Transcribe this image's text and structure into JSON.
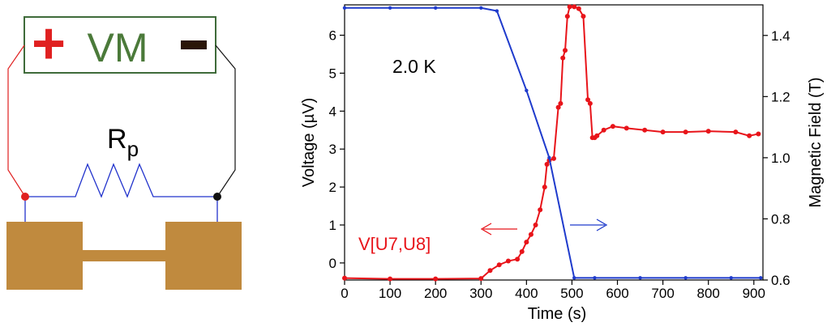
{
  "schematic": {
    "meter_label": "VM",
    "plus_symbol": "+",
    "minus_symbol": "-",
    "resistor_label": "R",
    "resistor_subscript": "p",
    "colors": {
      "plus": "#e02020",
      "meter_text": "#4b7a3a",
      "meter_border": "#3f6b3a",
      "minus": "#2a1608",
      "left_wire": "#e02020",
      "right_wire": "#111111",
      "bottom_wire": "#2233cc",
      "sample": "#c08a3e"
    }
  },
  "chart_data": {
    "type": "line",
    "annotation": "2.0 K",
    "xlabel": "Time (s)",
    "ylabel_left": "Voltage (µV)",
    "ylabel_right": "Magnetic Field (T)",
    "xlim": [
      0,
      920
    ],
    "ylim_left": [
      -0.45,
      6.8
    ],
    "ylim_right": [
      0.6,
      1.5
    ],
    "x_ticks": [
      0,
      100,
      200,
      300,
      400,
      500,
      600,
      700,
      800,
      900
    ],
    "y_ticks_left": [
      0,
      1,
      2,
      3,
      4,
      5,
      6
    ],
    "y_ticks_right": [
      0.6,
      0.8,
      1.0,
      1.2,
      1.4
    ],
    "y_tick_labels_right": [
      "0.6",
      "0.8",
      "1.0",
      "1.2",
      "1.4"
    ],
    "grid": false,
    "series": [
      {
        "name": "V[U7,U8]",
        "axis": "left",
        "color": "#e8141a",
        "x": [
          0,
          100,
          200,
          300,
          320,
          340,
          360,
          380,
          390,
          400,
          410,
          420,
          430,
          440,
          445,
          450,
          460,
          470,
          475,
          480,
          485,
          490,
          495,
          505,
          515,
          525,
          535,
          540,
          545,
          550,
          555,
          570,
          590,
          620,
          660,
          700,
          750,
          800,
          860,
          890,
          910
        ],
        "values": [
          -0.4,
          -0.42,
          -0.42,
          -0.41,
          -0.2,
          -0.05,
          0.05,
          0.1,
          0.3,
          0.55,
          0.75,
          1.0,
          1.4,
          2.0,
          2.6,
          2.7,
          2.75,
          4.1,
          4.2,
          5.4,
          5.6,
          6.5,
          6.75,
          6.75,
          6.7,
          6.5,
          4.3,
          4.2,
          3.3,
          3.3,
          3.35,
          3.5,
          3.6,
          3.55,
          3.5,
          3.45,
          3.45,
          3.47,
          3.45,
          3.35,
          3.4
        ]
      },
      {
        "name": "",
        "axis": "right",
        "color": "#1f3bcc",
        "x": [
          0,
          100,
          200,
          300,
          335,
          400,
          450,
          505,
          550,
          650,
          750,
          850,
          915
        ],
        "values": [
          1.49,
          1.49,
          1.49,
          1.49,
          1.48,
          1.22,
          1.0,
          0.607,
          0.607,
          0.607,
          0.607,
          0.607,
          0.607
        ]
      }
    ],
    "series_labels": [
      "V[U7,U8]"
    ]
  }
}
